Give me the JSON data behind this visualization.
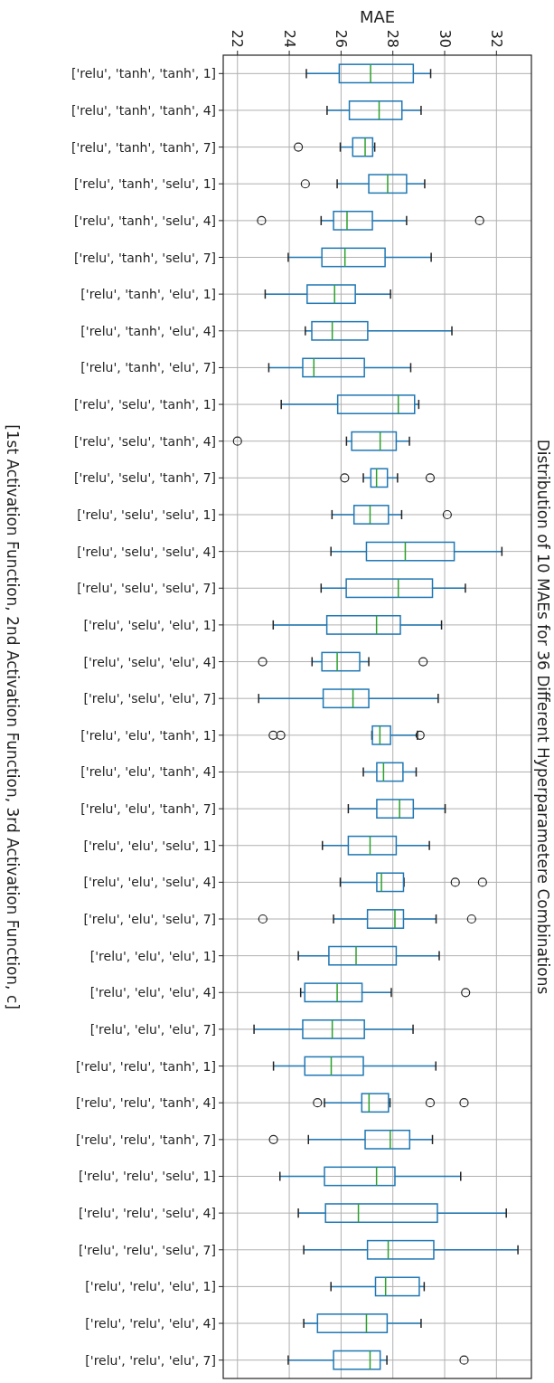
{
  "chart_data": {
    "type": "box",
    "orientation": "horizontal",
    "title": "Distribution of 10 MAEs for 36 Different Hyperparametere Combinations",
    "xlabel": "MAE",
    "ylabel": "[1st Activation Function, 2nd Activation Function, 3rd Activation Function, c]",
    "grid": true,
    "categories": [
      "['relu', 'tanh', 'tanh', 1]",
      "['relu', 'tanh', 'tanh', 4]",
      "['relu', 'tanh', 'tanh', 7]",
      "['relu', 'tanh', 'selu', 1]",
      "['relu', 'tanh', 'selu', 4]",
      "['relu', 'tanh', 'selu', 7]",
      "['relu', 'tanh', 'elu', 1]",
      "['relu', 'tanh', 'elu', 4]",
      "['relu', 'tanh', 'elu', 7]",
      "['relu', 'selu', 'tanh', 1]",
      "['relu', 'selu', 'tanh', 4]",
      "['relu', 'selu', 'tanh', 7]",
      "['relu', 'selu', 'selu', 1]",
      "['relu', 'selu', 'selu', 4]",
      "['relu', 'selu', 'selu', 7]",
      "['relu', 'selu', 'elu', 1]",
      "['relu', 'selu', 'elu', 4]",
      "['relu', 'selu', 'elu', 7]",
      "['relu', 'elu', 'tanh', 1]",
      "['relu', 'elu', 'tanh', 4]",
      "['relu', 'elu', 'tanh', 7]",
      "['relu', 'elu', 'selu', 1]",
      "['relu', 'elu', 'selu', 4]",
      "['relu', 'elu', 'selu', 7]",
      "['relu', 'elu', 'elu', 1]",
      "['relu', 'elu', 'elu', 4]",
      "['relu', 'elu', 'elu', 7]",
      "['relu', 'relu', 'tanh', 1]",
      "['relu', 'relu', 'tanh', 4]",
      "['relu', 'relu', 'tanh', 7]",
      "['relu', 'relu', 'selu', 1]",
      "['relu', 'relu', 'selu', 4]",
      "['relu', 'relu', 'selu', 7]",
      "['relu', 'relu', 'elu', 1]",
      "['relu', 'relu', 'elu', 4]",
      "['relu', 'relu', 'elu', 7]"
    ],
    "xlim": [
      21.45,
      33.35
    ],
    "xticks": [
      22,
      24,
      26,
      28,
      30,
      32
    ],
    "series": [
      {
        "color": "#1f77b4",
        "boxes": [
          {
            "low": 24.66,
            "q1": 25.93,
            "median": 27.14,
            "q3": 28.79,
            "high": 29.46
          },
          {
            "low": 25.46,
            "q1": 26.32,
            "median": 27.47,
            "q3": 28.35,
            "high": 29.09
          },
          {
            "low": 25.97,
            "q1": 26.45,
            "median": 26.93,
            "q3": 27.22,
            "high": 27.3,
            "outliers": [
              24.35
            ]
          },
          {
            "low": 25.85,
            "q1": 27.07,
            "median": 27.8,
            "q3": 28.53,
            "high": 29.23,
            "outliers": [
              24.62
            ]
          },
          {
            "low": 25.23,
            "q1": 25.71,
            "median": 26.23,
            "q3": 27.21,
            "high": 28.53,
            "outliers": [
              22.93,
              31.35
            ]
          },
          {
            "low": 23.96,
            "q1": 25.26,
            "median": 26.15,
            "q3": 27.7,
            "high": 29.48
          },
          {
            "low": 23.07,
            "q1": 24.69,
            "median": 25.75,
            "q3": 26.55,
            "high": 27.91
          },
          {
            "low": 24.62,
            "q1": 24.87,
            "median": 25.66,
            "q3": 27.03,
            "high": 30.28
          },
          {
            "low": 23.21,
            "q1": 24.52,
            "median": 24.95,
            "q3": 26.9,
            "high": 28.69
          },
          {
            "low": 23.69,
            "q1": 25.87,
            "median": 28.21,
            "q3": 28.84,
            "high": 29.0
          },
          {
            "low": 26.21,
            "q1": 26.41,
            "median": 27.51,
            "q3": 28.13,
            "high": 28.64,
            "outliers": [
              22.0
            ]
          },
          {
            "low": 26.86,
            "q1": 27.15,
            "median": 27.37,
            "q3": 27.79,
            "high": 28.18,
            "outliers": [
              26.14,
              29.44
            ]
          },
          {
            "low": 25.65,
            "q1": 26.5,
            "median": 27.12,
            "q3": 27.83,
            "high": 28.34,
            "outliers": [
              30.1
            ]
          },
          {
            "low": 25.61,
            "q1": 26.98,
            "median": 28.48,
            "q3": 30.37,
            "high": 32.21
          },
          {
            "low": 25.23,
            "q1": 26.2,
            "median": 28.21,
            "q3": 29.53,
            "high": 30.8
          },
          {
            "low": 23.38,
            "q1": 25.45,
            "median": 27.37,
            "q3": 28.29,
            "high": 29.88
          },
          {
            "low": 24.88,
            "q1": 25.26,
            "median": 25.85,
            "q3": 26.72,
            "high": 27.07,
            "outliers": [
              22.97,
              29.17
            ]
          },
          {
            "low": 22.82,
            "q1": 25.31,
            "median": 26.46,
            "q3": 27.07,
            "high": 29.75
          },
          {
            "low": 27.19,
            "q1": 27.21,
            "median": 27.5,
            "q3": 27.91,
            "high": 28.95,
            "outliers": [
              23.38,
              23.67,
              29.05
            ]
          },
          {
            "low": 26.86,
            "q1": 27.38,
            "median": 27.64,
            "q3": 28.39,
            "high": 28.9
          },
          {
            "low": 26.28,
            "q1": 27.38,
            "median": 28.26,
            "q3": 28.79,
            "high": 30.02
          },
          {
            "low": 25.28,
            "q1": 26.28,
            "median": 27.12,
            "q3": 28.13,
            "high": 29.41
          },
          {
            "low": 25.97,
            "q1": 27.38,
            "median": 27.56,
            "q3": 28.41,
            "high": 28.43,
            "outliers": [
              30.41,
              31.46
            ]
          },
          {
            "low": 25.71,
            "q1": 27.02,
            "median": 28.08,
            "q3": 28.41,
            "high": 29.67,
            "outliers": [
              22.98,
              31.04
            ]
          },
          {
            "low": 24.35,
            "q1": 25.53,
            "median": 26.58,
            "q3": 28.13,
            "high": 29.79
          },
          {
            "low": 24.44,
            "q1": 24.6,
            "median": 25.85,
            "q3": 26.81,
            "high": 27.94,
            "outliers": [
              30.81
            ]
          },
          {
            "low": 22.64,
            "q1": 24.52,
            "median": 25.66,
            "q3": 26.9,
            "high": 28.78
          },
          {
            "low": 23.39,
            "q1": 24.6,
            "median": 25.62,
            "q3": 26.86,
            "high": 29.66
          },
          {
            "low": 25.36,
            "q1": 26.8,
            "median": 27.08,
            "q3": 27.83,
            "high": 27.89,
            "outliers": [
              25.09,
              29.44,
              30.75
            ]
          },
          {
            "low": 24.74,
            "q1": 26.93,
            "median": 27.9,
            "q3": 28.65,
            "high": 29.53,
            "outliers": [
              23.39
            ]
          },
          {
            "low": 23.64,
            "q1": 25.36,
            "median": 27.37,
            "q3": 28.08,
            "high": 30.62
          },
          {
            "low": 24.35,
            "q1": 25.4,
            "median": 26.67,
            "q3": 29.72,
            "high": 32.38
          },
          {
            "low": 24.56,
            "q1": 27.02,
            "median": 27.82,
            "q3": 29.58,
            "high": 32.83
          },
          {
            "low": 25.61,
            "q1": 27.33,
            "median": 27.72,
            "q3": 29.02,
            "high": 29.21
          },
          {
            "low": 24.56,
            "q1": 25.09,
            "median": 26.98,
            "q3": 27.78,
            "high": 29.09
          },
          {
            "low": 23.96,
            "q1": 25.71,
            "median": 27.12,
            "q3": 27.51,
            "high": 27.77,
            "outliers": [
              30.75
            ]
          }
        ]
      }
    ]
  }
}
